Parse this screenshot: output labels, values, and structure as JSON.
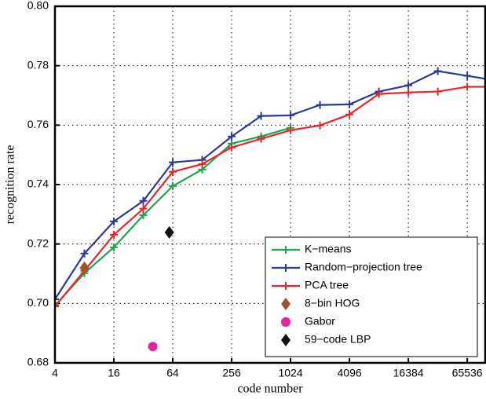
{
  "chart_data": {
    "type": "line",
    "x_label": "code number",
    "y_label": "recognition rate",
    "xscale": "log2",
    "grid": true,
    "legend": "lower right",
    "xlim": [
      4,
      100000
    ],
    "xticks": [
      4,
      16,
      64,
      256,
      1024,
      4096,
      16384,
      65536
    ],
    "ylim": [
      0.68,
      0.8
    ],
    "yticks": [
      0.68,
      {
        "value": 0.7,
        "label": "0.70"
      },
      0.72,
      0.74,
      0.76,
      0.78,
      {
        "value": 0.8,
        "label": "0.80"
      }
    ],
    "series": [
      {
        "name": "K−means",
        "color": "#1aa84a",
        "x": [
          4,
          8,
          16,
          32,
          64,
          128,
          256,
          512,
          1024
        ],
        "values": [
          0.6993,
          0.7102,
          0.7189,
          0.7297,
          0.7395,
          0.7451,
          0.7538,
          0.7562,
          0.7591
        ]
      },
      {
        "name": "Random−projection tree",
        "color": "#2b3a94",
        "x": [
          4,
          8,
          16,
          32,
          64,
          128,
          256,
          512,
          1024,
          2048,
          4096,
          8192,
          16384,
          32768,
          65536,
          131072
        ],
        "values": [
          0.7014,
          0.7168,
          0.7276,
          0.7345,
          0.7475,
          0.7483,
          0.7562,
          0.7631,
          0.7633,
          0.7668,
          0.767,
          0.7713,
          0.7734,
          0.7782,
          0.7766,
          0.775
        ]
      },
      {
        "name": "PCA tree",
        "color": "#e8272a",
        "x": [
          4,
          8,
          16,
          32,
          64,
          128,
          256,
          512,
          1024,
          2048,
          4096,
          8192,
          16384,
          32768,
          65536,
          131072
        ],
        "values": [
          0.699,
          0.711,
          0.7231,
          0.7319,
          0.7443,
          0.7469,
          0.7525,
          0.7554,
          0.7583,
          0.7599,
          0.7636,
          0.7705,
          0.771,
          0.7713,
          0.7729,
          0.7729
        ]
      }
    ],
    "points": [
      {
        "name": "8−bin HOG",
        "color": "#a0522d",
        "marker": "diamond",
        "x": 8,
        "value": 0.712
      },
      {
        "name": "Gabor",
        "color": "#e6239a",
        "marker": "circle",
        "x": 40,
        "value": 0.6855
      },
      {
        "name": "59−code LBP",
        "color": "#111111",
        "marker": "diamond",
        "x": 59,
        "value": 0.7239
      }
    ]
  }
}
